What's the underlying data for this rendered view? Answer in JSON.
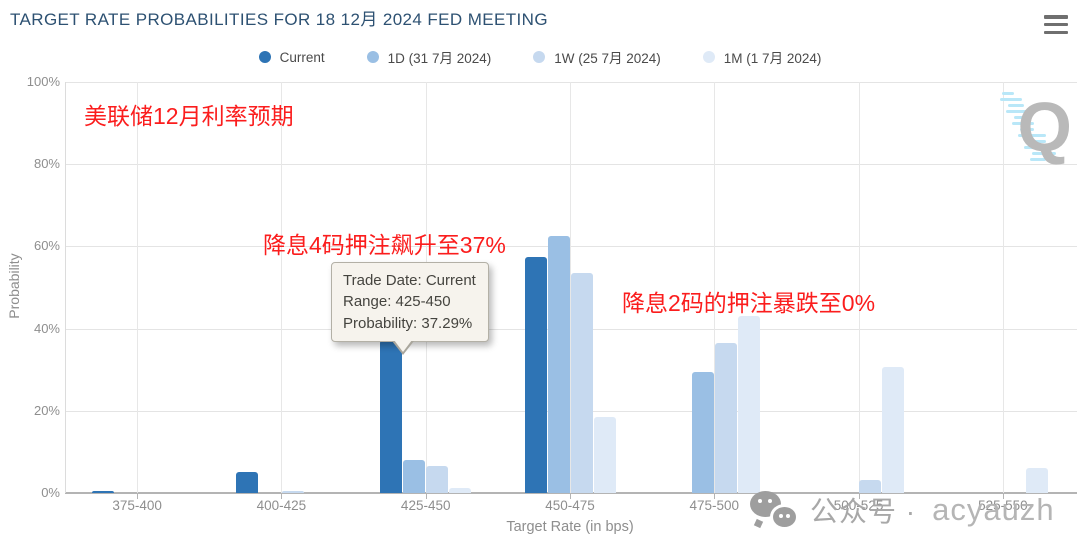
{
  "header": {
    "title": "TARGET RATE PROBABILITIES FOR 18 12月 2024 FED MEETING"
  },
  "legend": {
    "items": [
      {
        "label": "Current",
        "color": "#2e74b5"
      },
      {
        "label": "1D (31 7月 2024)",
        "color": "#9abfe4"
      },
      {
        "label": "1W (25 7月 2024)",
        "color": "#c6d9ef"
      },
      {
        "label": "1M (1 7月 2024)",
        "color": "#dfeaf7"
      }
    ]
  },
  "chart_data": {
    "type": "bar",
    "title": "TARGET RATE PROBABILITIES FOR 18 12月 2024 FED MEETING",
    "categories": [
      "375-400",
      "400-425",
      "425-450",
      "450-475",
      "475-500",
      "500-525",
      "525-550"
    ],
    "series": [
      {
        "name": "Current",
        "color": "#2e74b5",
        "values": [
          0.5,
          5.0,
          37.29,
          57.5,
          0,
          0,
          0
        ]
      },
      {
        "name": "1D (31 7月 2024)",
        "color": "#9abfe4",
        "values": [
          0,
          0,
          8.0,
          62.6,
          29.5,
          0,
          0
        ]
      },
      {
        "name": "1W (25 7月 2024)",
        "color": "#c6d9ef",
        "values": [
          0,
          0.4,
          6.6,
          53.5,
          36.5,
          3.1,
          0
        ]
      },
      {
        "name": "1M (1 7月 2024)",
        "color": "#dfeaf7",
        "values": [
          0,
          0,
          1.3,
          18.4,
          43.0,
          30.6,
          6.1
        ]
      }
    ],
    "xlabel": "Target Rate (in bps)",
    "ylabel": "Probability",
    "ylim": [
      0,
      100
    ],
    "yticks": [
      "0%",
      "20%",
      "40%",
      "60%",
      "80%",
      "100%"
    ],
    "grid": true,
    "legend_position": "top"
  },
  "tooltip": {
    "lines": [
      "Trade Date: Current",
      "Range: 425-450",
      "Probability: 37.29%"
    ]
  },
  "annotations": [
    {
      "text": "美联储12月利率预期"
    },
    {
      "text": "降息4码押注飙升至37%"
    },
    {
      "text": "降息2码的押注暴跌至0%"
    }
  ],
  "watermark": {
    "prefix": "公众号 ·",
    "name": "acyauzh"
  },
  "logo": {
    "letter": "Q"
  }
}
